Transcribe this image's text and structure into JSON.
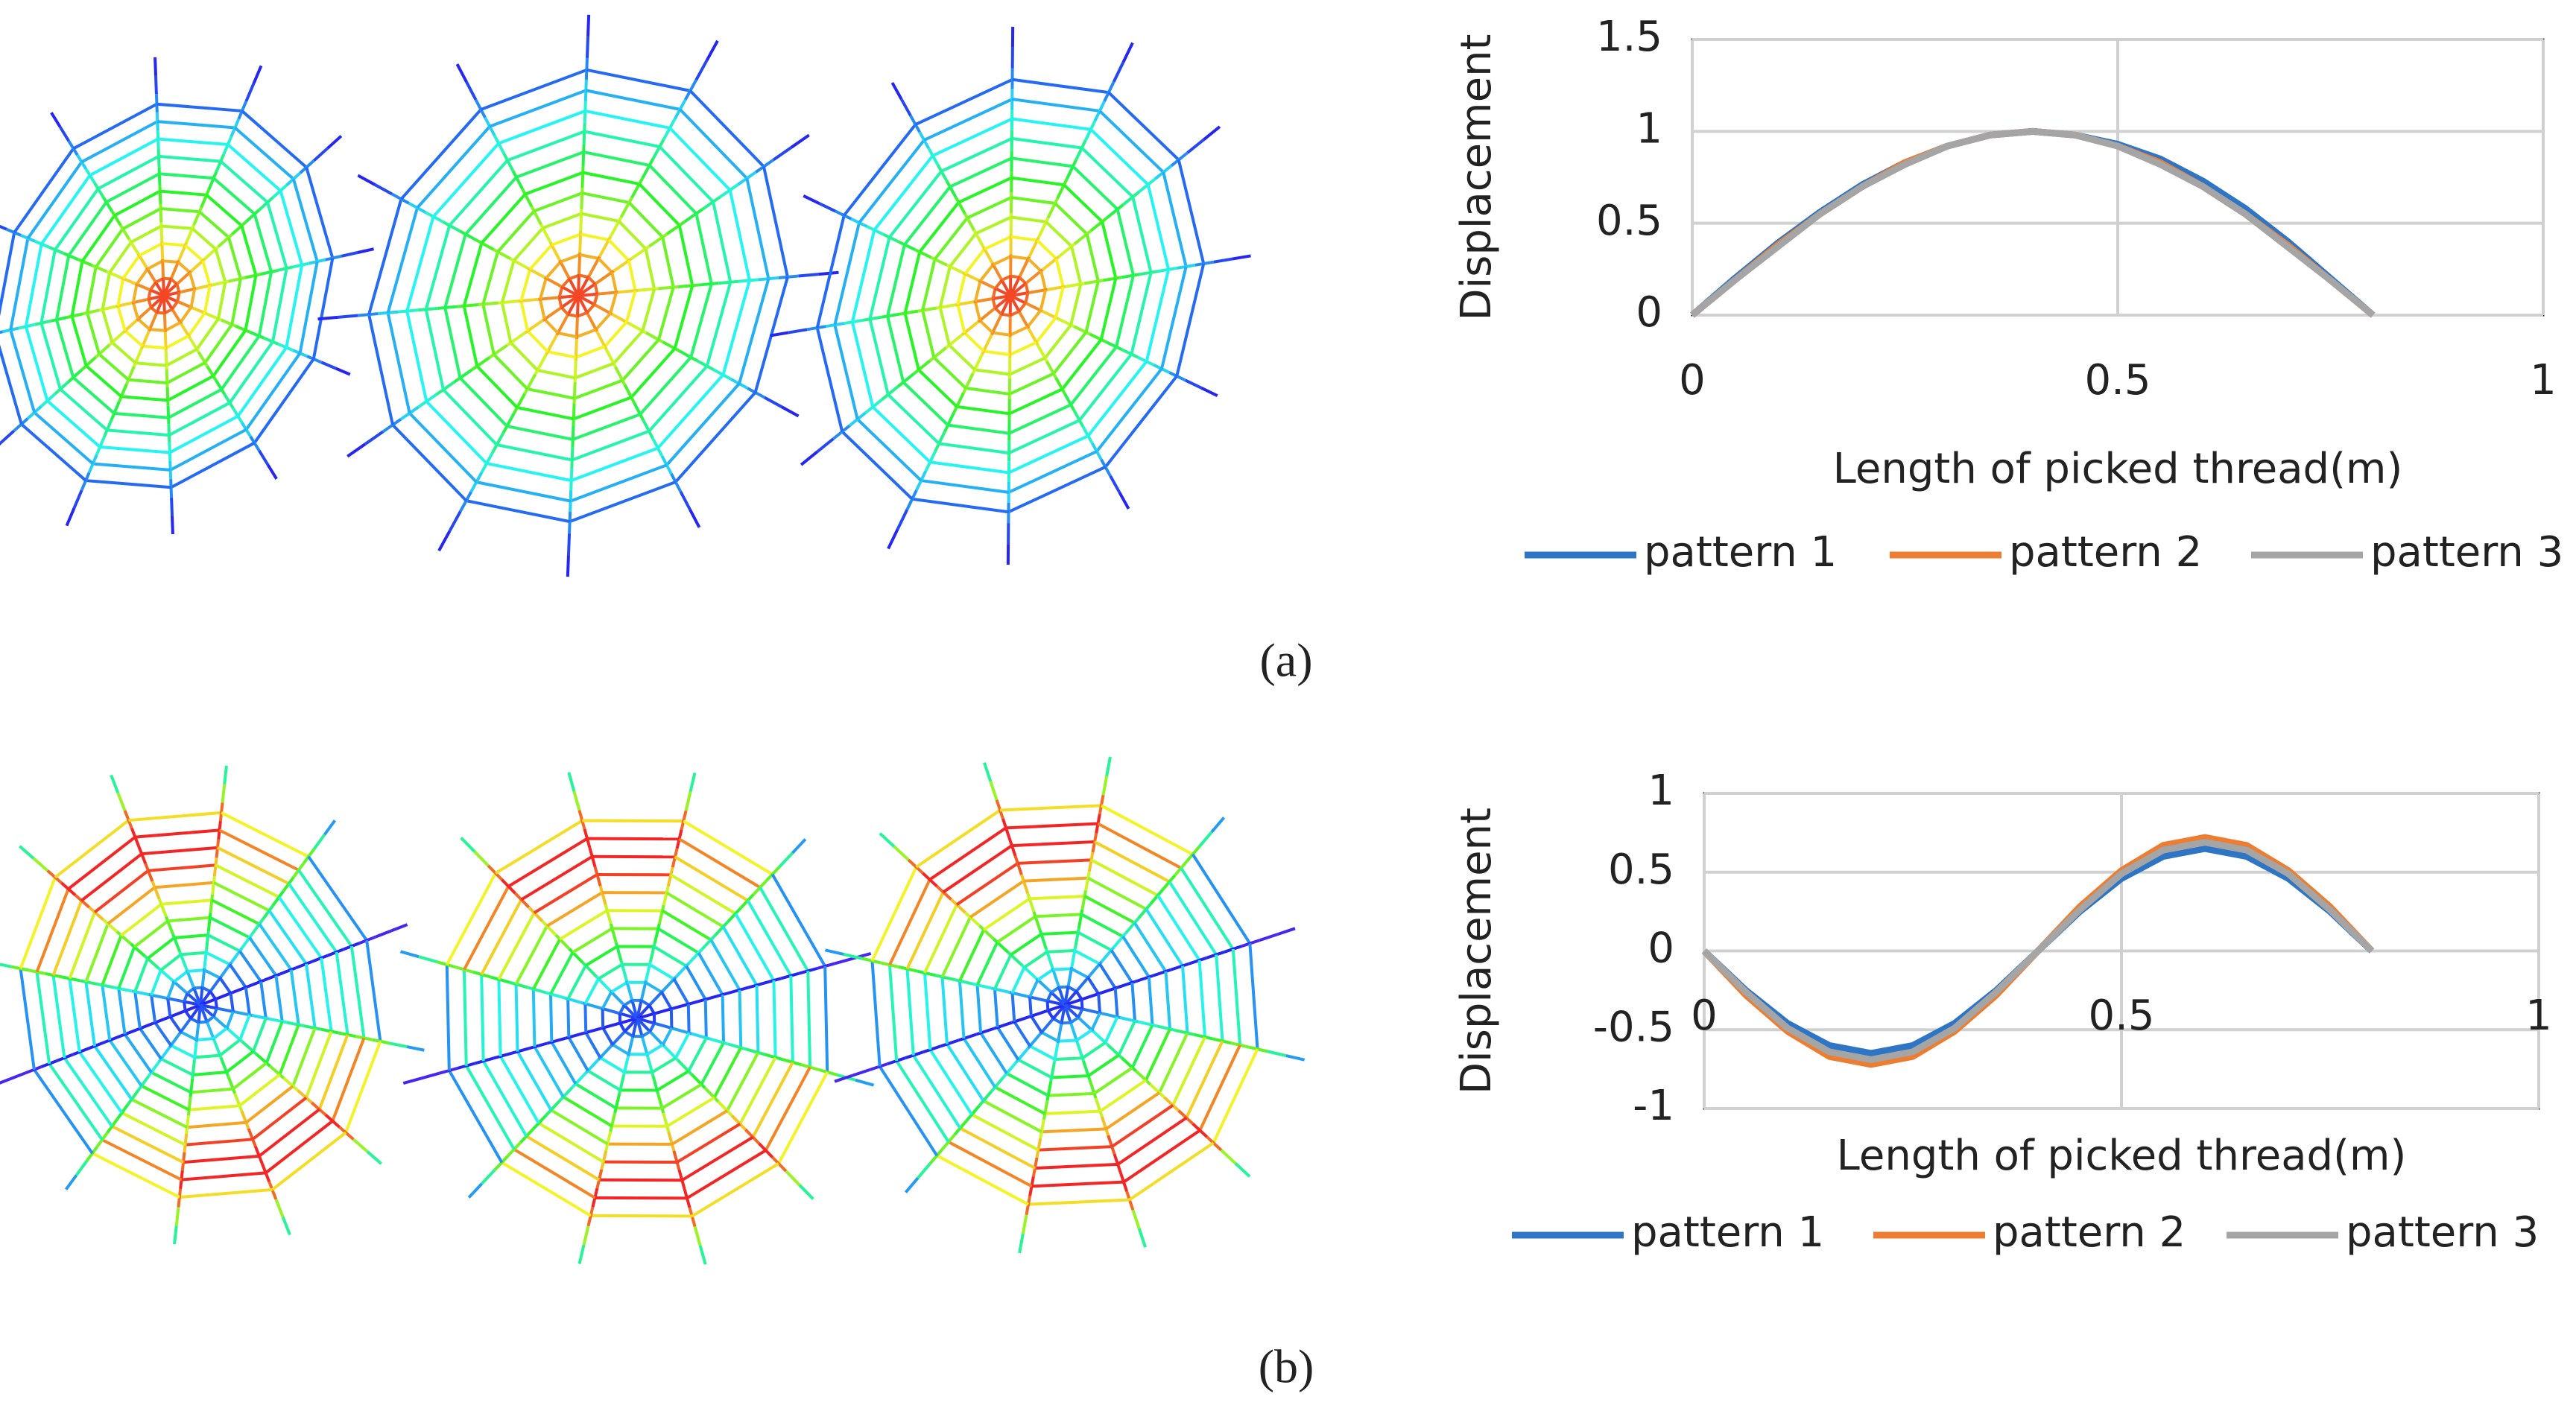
{
  "chart_data": [
    {
      "type": "line",
      "caption": "(a)",
      "y_label": "Displacement",
      "x_label": "Length of picked thread(m)",
      "x": [
        0,
        0.05,
        0.1,
        0.15,
        0.2,
        0.25,
        0.3,
        0.35,
        0.4,
        0.45,
        0.5,
        0.55,
        0.6,
        0.65,
        0.7,
        0.75,
        0.8
      ],
      "series": [
        {
          "name": "pattern 1",
          "color": "#2e75c6",
          "values": [
            0,
            0.2,
            0.39,
            0.56,
            0.71,
            0.83,
            0.92,
            0.98,
            1,
            0.98,
            0.93,
            0.85,
            0.73,
            0.58,
            0.4,
            0.2,
            0
          ]
        },
        {
          "name": "pattern 2",
          "color": "#ed7d31",
          "values": [
            0,
            0.19,
            0.38,
            0.55,
            0.7,
            0.83,
            0.92,
            0.98,
            1,
            0.98,
            0.92,
            0.83,
            0.7,
            0.55,
            0.38,
            0.19,
            0
          ]
        },
        {
          "name": "pattern 3",
          "color": "#a5a5a5",
          "values": [
            0,
            0.19,
            0.37,
            0.55,
            0.7,
            0.82,
            0.92,
            0.98,
            1,
            0.98,
            0.92,
            0.82,
            0.7,
            0.55,
            0.37,
            0.19,
            0
          ]
        }
      ],
      "xlim": [
        0,
        1
      ],
      "xticks": [
        0,
        0.5,
        1
      ],
      "ylim": [
        0,
        1.5
      ],
      "yticks": [
        0,
        0.5,
        1,
        1.5
      ],
      "grid": true,
      "legend": "bottom"
    },
    {
      "type": "line",
      "caption": "(b)",
      "y_label": "Displacement",
      "x_label": "Length of picked thread(m)",
      "x": [
        0,
        0.05,
        0.1,
        0.15,
        0.2,
        0.25,
        0.3,
        0.35,
        0.4,
        0.45,
        0.5,
        0.55,
        0.6,
        0.65,
        0.7,
        0.75,
        0.8
      ],
      "series": [
        {
          "name": "pattern 1",
          "color": "#2e75c6",
          "values": [
            0,
            -0.25,
            -0.46,
            -0.6,
            -0.65,
            -0.6,
            -0.46,
            -0.25,
            0,
            0.25,
            0.46,
            0.6,
            0.65,
            0.6,
            0.46,
            0.25,
            0
          ]
        },
        {
          "name": "pattern 2",
          "color": "#ed7d31",
          "values": [
            0,
            -0.28,
            -0.51,
            -0.67,
            -0.72,
            -0.67,
            -0.51,
            -0.28,
            0,
            0.28,
            0.51,
            0.67,
            0.72,
            0.67,
            0.51,
            0.28,
            0
          ]
        },
        {
          "name": "pattern 3",
          "color": "#a5a5a5",
          "values": [
            0,
            -0.26,
            -0.49,
            -0.64,
            -0.69,
            -0.64,
            -0.49,
            -0.26,
            0,
            0.26,
            0.49,
            0.64,
            0.69,
            0.64,
            0.49,
            0.26,
            0
          ]
        }
      ],
      "xlim": [
        0,
        1
      ],
      "xticks": [
        0,
        0.5,
        1
      ],
      "ylim": [
        -1,
        1
      ],
      "yticks": [
        -1,
        -0.5,
        0,
        0.5,
        1
      ],
      "grid": true,
      "legend": "bottom"
    }
  ]
}
